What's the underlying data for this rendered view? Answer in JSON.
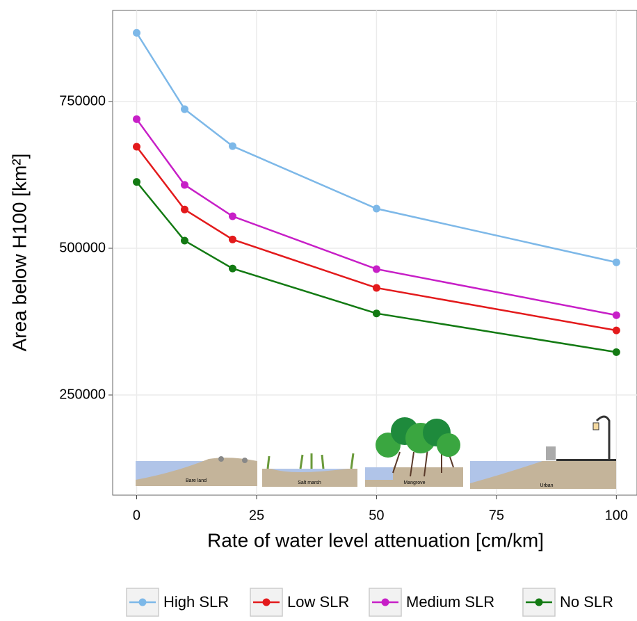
{
  "chart_data": {
    "type": "line",
    "x_label": "Rate of water level attenuation [cm/km]",
    "y_label": "Area below H100 [km²]",
    "x": [
      0,
      10,
      20,
      50,
      100
    ],
    "series": [
      {
        "name": "High SLR",
        "color": "#7db8e8",
        "values": [
          867000,
          737000,
          674000,
          567500,
          476000
        ]
      },
      {
        "name": "Low SLR",
        "color": "#e31a1c",
        "values": [
          673000,
          566000,
          515000,
          432500,
          360000
        ]
      },
      {
        "name": "Medium SLR",
        "color": "#c71fc7",
        "values": [
          720000,
          608000,
          554500,
          464500,
          386000
        ]
      },
      {
        "name": "No SLR",
        "color": "#137a13",
        "values": [
          613000,
          513000,
          465500,
          389000,
          323000
        ]
      }
    ],
    "xlim": [
      -5,
      104.3
    ],
    "ylim": [
      79400,
      905200
    ],
    "xticks": [
      0,
      25,
      50,
      75,
      100
    ],
    "yticks": [
      250000,
      500000,
      750000
    ],
    "grid": true,
    "legend": "bottom",
    "illustration_labels": [
      "Bare land",
      "Salt marsh",
      "Mangrove",
      "Urban"
    ]
  }
}
